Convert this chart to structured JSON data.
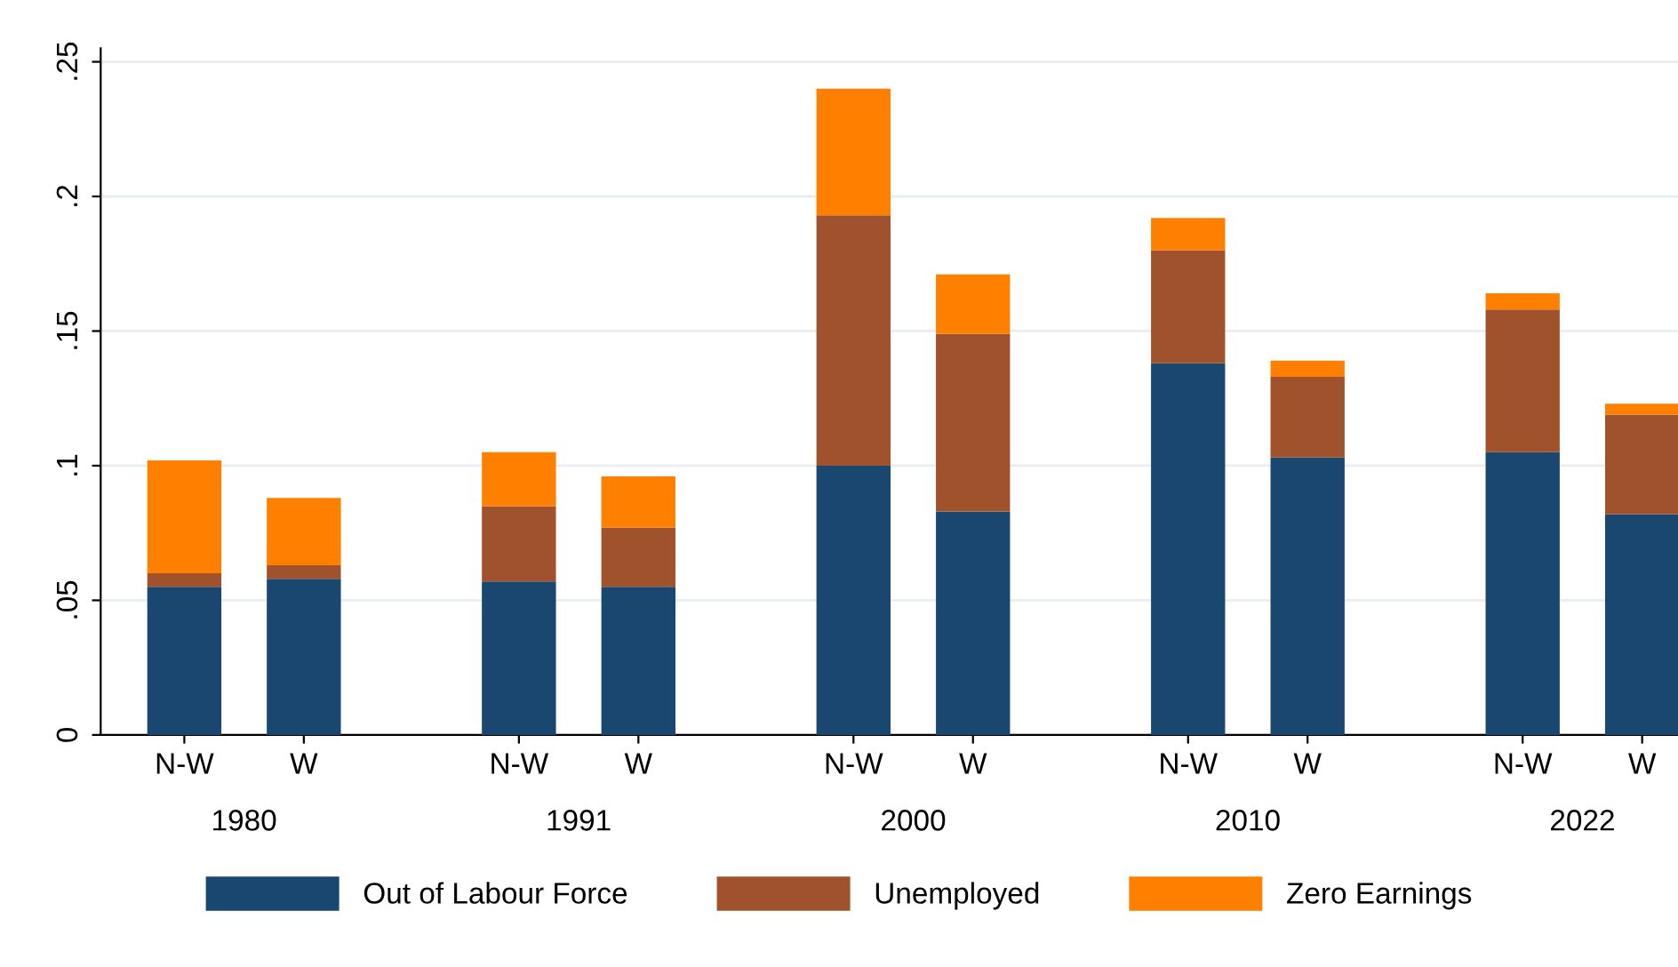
{
  "chart_data": {
    "type": "bar",
    "stacked": true,
    "categories": [
      "N-W",
      "W",
      "N-W",
      "W",
      "N-W",
      "W",
      "N-W",
      "W",
      "N-W",
      "W"
    ],
    "series": [
      {
        "name": "Out of Labour Force",
        "color": "#1a476f",
        "values": [
          0.055,
          0.058,
          0.057,
          0.055,
          0.1,
          0.083,
          0.138,
          0.103,
          0.105,
          0.082
        ]
      },
      {
        "name": "Unemployed",
        "color": "#a0522d",
        "values": [
          0.005,
          0.005,
          0.028,
          0.022,
          0.093,
          0.066,
          0.042,
          0.03,
          0.053,
          0.037
        ]
      },
      {
        "name": "Zero Earnings",
        "color": "#ff8000",
        "values": [
          0.042,
          0.025,
          0.02,
          0.019,
          0.047,
          0.022,
          0.012,
          0.006,
          0.006,
          0.004
        ]
      }
    ],
    "annotations": [
      "1980",
      "1991",
      "2000",
      "2010",
      "2022"
    ],
    "ylim": [
      0,
      0.255
    ],
    "yticks": [
      0,
      {
        "value": 0.05,
        "label": ".05"
      },
      {
        "value": 0.1,
        "label": ".1"
      },
      {
        "value": 0.15,
        "label": ".15"
      },
      {
        "value": 0.2,
        "label": ".2"
      },
      {
        "value": 0.25,
        "label": ".25"
      }
    ],
    "grid": "y",
    "legend": "bottom"
  }
}
